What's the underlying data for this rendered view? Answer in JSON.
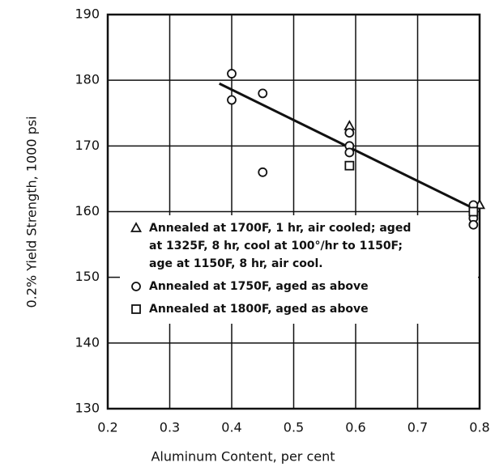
{
  "chart_data": {
    "type": "scatter",
    "xlabel": "Aluminum Content, per cent",
    "ylabel": "0.2% Yield Strength, 1000 psi",
    "xlim": [
      0.2,
      0.8
    ],
    "ylim": [
      130,
      190
    ],
    "xticks": [
      0.2,
      0.3,
      0.4,
      0.5,
      0.6,
      0.7,
      0.8
    ],
    "yticks": [
      130,
      140,
      150,
      160,
      170,
      180,
      190
    ],
    "grid": true,
    "color": "#111111",
    "series": [
      {
        "name": [
          "Annealed at 1700F, 1 hr, air cooled; aged",
          "at 1325F, 8 hr, cool at 100°/hr to 1150F;",
          "age  at 1150F, 8 hr, air cool."
        ],
        "marker": "triangle",
        "x": [
          0.59,
          0.8
        ],
        "values": [
          173,
          161
        ]
      },
      {
        "name": [
          "Annealed at 1750F, aged as above"
        ],
        "marker": "circle",
        "x": [
          0.4,
          0.4,
          0.45,
          0.45,
          0.59,
          0.59,
          0.59,
          0.79,
          0.79,
          0.79,
          0.79
        ],
        "values": [
          181,
          177,
          178,
          166,
          172,
          170,
          169,
          161,
          160,
          159,
          158
        ]
      },
      {
        "name": [
          "Annealed at 1800F, aged as above"
        ],
        "marker": "square",
        "x": [
          0.59,
          0.79
        ],
        "values": [
          167,
          160
        ]
      }
    ],
    "trend_line": {
      "x": [
        0.38,
        0.79
      ],
      "values": [
        179.5,
        160.5
      ]
    }
  }
}
